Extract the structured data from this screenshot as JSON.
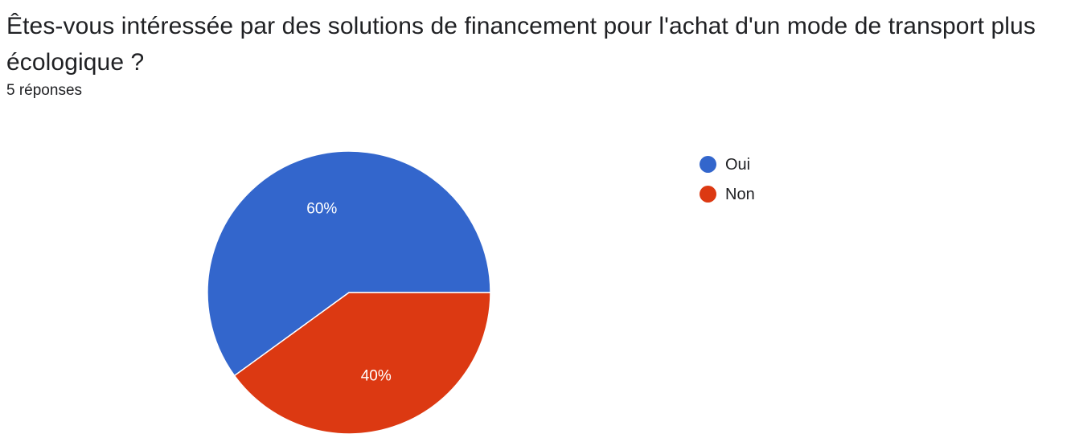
{
  "question": {
    "title": "Êtes-vous intéressée par des solutions de financement pour l'achat d'un mode de transport plus écologique ?",
    "responses": "5 réponses"
  },
  "chart_data": {
    "type": "pie",
    "title": "Êtes-vous intéressée par des solutions de financement pour l'achat d'un mode de transport plus écologique ?",
    "legend_position": "right",
    "series": [
      {
        "categories": [
          "Oui",
          "Non"
        ],
        "values": [
          60,
          40
        ],
        "labels": [
          "60%",
          "40%"
        ],
        "colors": [
          "#3366cc",
          "#dc3912"
        ]
      }
    ]
  }
}
